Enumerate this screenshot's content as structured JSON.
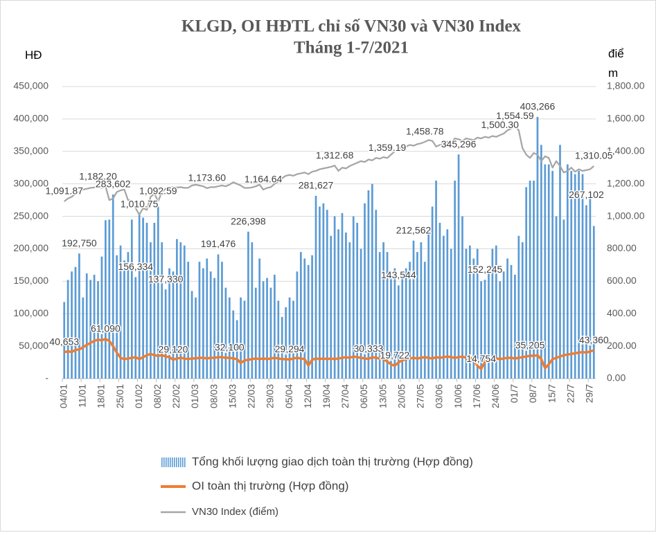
{
  "chart_data": {
    "type": "bar",
    "title": "KLGD, OI HĐTL chỉ số VN30 và VN30 Index",
    "subtitle": "Tháng 1-7/2021",
    "y_label": "HĐ",
    "y2_label": "điểm",
    "legend": "bottom",
    "grid": true,
    "ylim": [
      0,
      450000
    ],
    "yticks": [
      {
        "value": 0,
        "label": "-"
      },
      {
        "value": 50000,
        "label": "50,000"
      },
      {
        "value": 100000,
        "label": "100,000"
      },
      {
        "value": 150000,
        "label": "150,000"
      },
      {
        "value": 200000,
        "label": "200,000"
      },
      {
        "value": 250000,
        "label": "250,000"
      },
      {
        "value": 300000,
        "label": "300,000"
      },
      {
        "value": 350000,
        "label": "350,000"
      },
      {
        "value": 400000,
        "label": "400,000"
      },
      {
        "value": 450000,
        "label": "450,000"
      }
    ],
    "y2lim": [
      0,
      1800
    ],
    "y2ticks": [
      {
        "value": 0,
        "label": "0.00"
      },
      {
        "value": 200,
        "label": "200.00"
      },
      {
        "value": 400,
        "label": "400.00"
      },
      {
        "value": 600,
        "label": "600.00"
      },
      {
        "value": 800,
        "label": "800.00"
      },
      {
        "value": 1000,
        "label": "1,000.00"
      },
      {
        "value": 1200,
        "label": "1,200.00"
      },
      {
        "value": 1400,
        "label": "1,400.00"
      },
      {
        "value": 1600,
        "label": "1,600.00"
      },
      {
        "value": 1800,
        "label": "1,800.00"
      }
    ],
    "categories": [
      "04/01",
      null,
      null,
      null,
      null,
      "11/01",
      null,
      null,
      null,
      null,
      "18/01",
      null,
      null,
      null,
      null,
      "25/01",
      null,
      null,
      null,
      null,
      "01/02",
      null,
      null,
      null,
      null,
      "08/02",
      null,
      null,
      null,
      null,
      "22/02",
      null,
      null,
      null,
      null,
      "01/03",
      null,
      null,
      null,
      null,
      "08/03",
      null,
      null,
      null,
      null,
      "15/03",
      null,
      null,
      null,
      null,
      "22/03",
      null,
      null,
      null,
      null,
      "29/03",
      null,
      null,
      null,
      null,
      "05/04",
      null,
      null,
      null,
      null,
      "12/04",
      null,
      null,
      null,
      null,
      "19/04",
      null,
      null,
      null,
      null,
      "27/04",
      null,
      null,
      null,
      null,
      "06/05",
      null,
      null,
      null,
      null,
      "13/05",
      null,
      null,
      null,
      null,
      "20/05",
      null,
      null,
      null,
      null,
      "27/05",
      null,
      null,
      null,
      null,
      "03/06",
      null,
      null,
      null,
      null,
      "10/06",
      null,
      null,
      null,
      null,
      "17/06",
      null,
      null,
      null,
      null,
      "24/06",
      null,
      null,
      null,
      null,
      "01/7",
      null,
      null,
      null,
      null,
      "08/7",
      null,
      null,
      null,
      null,
      "15/7",
      null,
      null,
      null,
      null,
      "22/7",
      null,
      null,
      null,
      null,
      "29/7",
      null
    ],
    "series": [
      {
        "name": "Tổng khối lượng giao dịch toàn thị trường (Hợp đồng)",
        "type": "bar",
        "color": "#5b9bd5",
        "values": [
          118000,
          152000,
          165000,
          172000,
          192750,
          125000,
          162000,
          152000,
          160000,
          150000,
          188000,
          244000,
          245000,
          283602,
          190000,
          205000,
          182000,
          195000,
          245000,
          156334,
          255000,
          248000,
          240000,
          210000,
          240000,
          265000,
          210000,
          137330,
          170000,
          165000,
          215000,
          210000,
          205000,
          180000,
          135000,
          125000,
          180000,
          170000,
          185000,
          165000,
          155000,
          191476,
          180000,
          140000,
          125000,
          105000,
          90000,
          125000,
          120000,
          226398,
          210000,
          140000,
          185000,
          150000,
          155000,
          140000,
          160000,
          120000,
          95000,
          110000,
          125000,
          120000,
          165000,
          195000,
          185000,
          175000,
          190000,
          281627,
          265000,
          270000,
          260000,
          220000,
          250000,
          230000,
          255000,
          225000,
          210000,
          250000,
          240000,
          200000,
          270000,
          290000,
          300000,
          260000,
          195000,
          210000,
          195000,
          160000,
          170000,
          143544,
          160000,
          170000,
          180000,
          212562,
          195000,
          210000,
          180000,
          230000,
          265000,
          305000,
          240000,
          220000,
          230000,
          200000,
          305000,
          345296,
          250000,
          200000,
          205000,
          185000,
          200000,
          150000,
          152245,
          165000,
          200000,
          205000,
          150000,
          165000,
          185000,
          175000,
          160000,
          220000,
          210000,
          295000,
          305000,
          305000,
          403266,
          360000,
          330000,
          330000,
          320000,
          250000,
          360000,
          245000,
          330000,
          320000,
          315000,
          320000,
          315000,
          267102,
          280000,
          235000
        ],
        "value_labels": [
          null,
          null,
          null,
          null,
          "192,750",
          null,
          null,
          null,
          null,
          null,
          null,
          null,
          null,
          "283,602",
          null,
          null,
          null,
          null,
          null,
          "156,334",
          null,
          null,
          null,
          null,
          null,
          null,
          null,
          "137,330",
          null,
          null,
          null,
          null,
          null,
          null,
          null,
          null,
          null,
          null,
          null,
          null,
          null,
          "191,476",
          null,
          null,
          null,
          null,
          null,
          null,
          null,
          "226,398",
          null,
          null,
          null,
          null,
          null,
          null,
          null,
          null,
          null,
          null,
          null,
          null,
          null,
          null,
          null,
          null,
          null,
          "281,627",
          null,
          null,
          null,
          null,
          null,
          null,
          null,
          null,
          null,
          null,
          null,
          null,
          null,
          null,
          null,
          null,
          null,
          null,
          null,
          null,
          null,
          "143,544",
          null,
          null,
          null,
          "212,562",
          null,
          null,
          null,
          null,
          null,
          null,
          null,
          null,
          null,
          null,
          null,
          "345,296",
          null,
          null,
          null,
          null,
          null,
          null,
          "152,245",
          null,
          null,
          null,
          null,
          null,
          null,
          null,
          null,
          null,
          null,
          null,
          null,
          null,
          "403,266",
          null,
          null,
          null,
          null,
          null,
          null,
          null,
          null,
          null,
          null,
          null,
          null,
          "267,102",
          null,
          null
        ]
      },
      {
        "name": "OI toàn thị trường (Hợp đồng)",
        "type": "line",
        "color": "#ed7d31",
        "values": [
          40653,
          42000,
          41000,
          44000,
          45000,
          48000,
          52000,
          55000,
          58000,
          60000,
          59000,
          61090,
          58000,
          50000,
          40000,
          32000,
          30000,
          31000,
          32000,
          33000,
          30000,
          33000,
          36000,
          38000,
          36000,
          35000,
          36000,
          34000,
          33000,
          29120,
          31000,
          32000,
          31000,
          30000,
          31000,
          31000,
          32000,
          32000,
          31000,
          32000,
          32000,
          33000,
          33000,
          32000,
          32100,
          31000,
          30000,
          24000,
          28000,
          29000,
          30000,
          31000,
          30000,
          31000,
          30000,
          31000,
          32000,
          31000,
          30000,
          30000,
          29294,
          31000,
          32000,
          31000,
          30000,
          20000,
          29000,
          31000,
          30000,
          31000,
          30000,
          31000,
          30000,
          31000,
          32000,
          33000,
          32000,
          34000,
          33000,
          32000,
          31000,
          30333,
          33000,
          32000,
          31000,
          30000,
          26000,
          22000,
          19722,
          25000,
          28000,
          30000,
          31000,
          32000,
          31000,
          32000,
          33000,
          32000,
          31000,
          33000,
          32000,
          33000,
          34000,
          33000,
          32000,
          33000,
          34000,
          32000,
          33000,
          28000,
          20000,
          14754,
          26000,
          29000,
          30000,
          31000,
          30000,
          31000,
          32000,
          32000,
          31000,
          32000,
          33000,
          34000,
          35205,
          35000,
          36000,
          30000,
          16000,
          22000,
          30000,
          32000,
          34000,
          36000,
          37000,
          38000,
          39000,
          40000,
          41000,
          40000,
          42000,
          43360
        ],
        "value_labels": [
          "40,653",
          null,
          null,
          null,
          null,
          null,
          null,
          null,
          null,
          null,
          null,
          "61,090",
          null,
          null,
          null,
          null,
          null,
          null,
          null,
          null,
          null,
          null,
          null,
          null,
          null,
          null,
          null,
          null,
          null,
          "29,120",
          null,
          null,
          null,
          null,
          null,
          null,
          null,
          null,
          null,
          null,
          null,
          null,
          null,
          null,
          "32,100",
          null,
          null,
          null,
          null,
          null,
          null,
          null,
          null,
          null,
          null,
          null,
          null,
          null,
          null,
          null,
          "29,294",
          null,
          null,
          null,
          null,
          null,
          null,
          null,
          null,
          null,
          null,
          null,
          null,
          null,
          null,
          null,
          null,
          null,
          null,
          null,
          null,
          "30,333",
          null,
          null,
          null,
          null,
          null,
          null,
          "19,722",
          null,
          null,
          null,
          null,
          null,
          null,
          null,
          null,
          null,
          null,
          null,
          null,
          null,
          null,
          null,
          null,
          null,
          null,
          null,
          null,
          null,
          null,
          "14,754",
          null,
          null,
          null,
          null,
          null,
          null,
          null,
          null,
          null,
          null,
          null,
          null,
          "35,205",
          null,
          null,
          null,
          null,
          null,
          null,
          null,
          null,
          null,
          null,
          null,
          null,
          null,
          null,
          null,
          null,
          "43,360"
        ]
      },
      {
        "name": "VN30 Index (điểm)",
        "type": "line",
        "axis": "y2",
        "color": "#a5a5a5",
        "values": [
          1091.87,
          1110,
          1120,
          1140,
          1150,
          1165,
          1170,
          1175,
          1178,
          1182.2,
          1175,
          1185,
          1100,
          1110,
          1150,
          1160,
          1165,
          1100,
          1095,
          1050,
          1010.75,
          1050,
          1040,
          1120,
          1140,
          1092.59,
          1150,
          1170,
          1180,
          1180,
          1178,
          1180,
          1175,
          1176,
          1190,
          1195,
          1190,
          1185,
          1173.6,
          1180,
          1180,
          1185,
          1190,
          1185,
          1195,
          1210,
          1200,
          1190,
          1175,
          1175,
          1178,
          1185,
          1195,
          1164.64,
          1175,
          1180,
          1200,
          1215,
          1235,
          1250,
          1255,
          1250,
          1260,
          1265,
          1270,
          1260,
          1275,
          1280,
          1290,
          1295,
          1300,
          1305,
          1312.68,
          1280,
          1300,
          1295,
          1310,
          1320,
          1330,
          1340,
          1335,
          1350,
          1345,
          1360,
          1355,
          1365,
          1359.19,
          1380,
          1400,
          1420,
          1425,
          1430,
          1440,
          1435,
          1445,
          1450,
          1458.78,
          1470,
          1465,
          1430,
          1440,
          1445,
          1460,
          1455,
          1480,
          1475,
          1465,
          1480,
          1475,
          1470,
          1485,
          1480,
          1490,
          1485,
          1495,
          1490,
          1500.3,
          1510,
          1530,
          1540,
          1554.59,
          1530,
          1420,
          1380,
          1360,
          1390,
          1380,
          1340,
          1370,
          1360,
          1300,
          1340,
          1310,
          1270,
          1280,
          1300,
          1275,
          1290,
          1280,
          1285,
          1290,
          1310.05
        ],
        "value_labels": [
          "1,091.87",
          null,
          null,
          null,
          null,
          null,
          null,
          null,
          null,
          "1,182.20",
          null,
          null,
          null,
          null,
          null,
          null,
          null,
          null,
          null,
          null,
          "1,010.75",
          null,
          null,
          null,
          null,
          "1,092.59",
          null,
          null,
          null,
          null,
          null,
          null,
          null,
          null,
          null,
          null,
          null,
          null,
          "1,173.60",
          null,
          null,
          null,
          null,
          null,
          null,
          null,
          null,
          null,
          null,
          null,
          null,
          null,
          null,
          "1,164.64",
          null,
          null,
          null,
          null,
          null,
          null,
          null,
          null,
          null,
          null,
          null,
          null,
          null,
          null,
          null,
          null,
          null,
          null,
          "1,312.68",
          null,
          null,
          null,
          null,
          null,
          null,
          null,
          null,
          null,
          null,
          null,
          null,
          null,
          "1,359.19",
          null,
          null,
          null,
          null,
          null,
          null,
          null,
          null,
          null,
          "1,458.78",
          null,
          null,
          null,
          null,
          null,
          null,
          null,
          null,
          null,
          null,
          null,
          null,
          null,
          null,
          null,
          null,
          null,
          null,
          null,
          "1,500.30",
          null,
          null,
          null,
          "1,554.59",
          null,
          null,
          null,
          null,
          null,
          null,
          null,
          null,
          null,
          null,
          null,
          null,
          null,
          null,
          null,
          null,
          null,
          null,
          null,
          null,
          "1,310.05"
        ]
      }
    ]
  }
}
